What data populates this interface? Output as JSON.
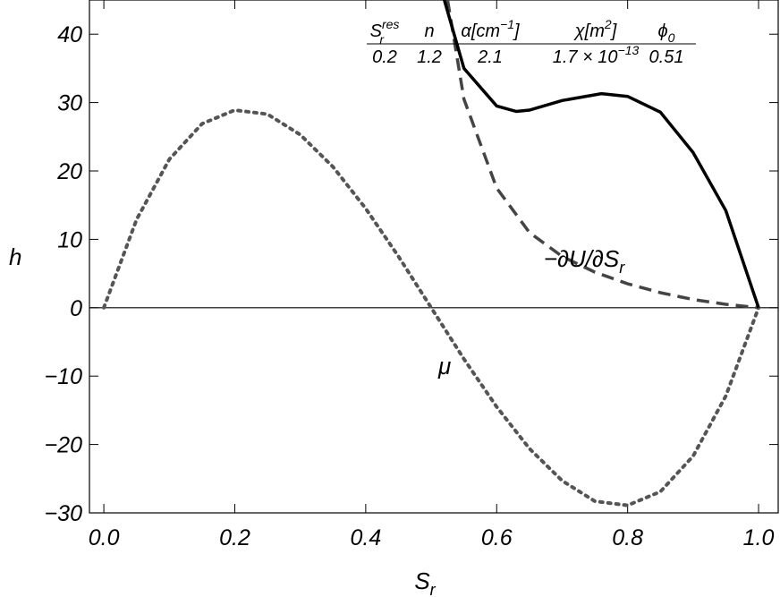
{
  "chart_data": {
    "type": "line",
    "x_label": {
      "text": "S",
      "sub": "r"
    },
    "y_label": "h",
    "xlim": [
      -0.022,
      1.03
    ],
    "ylim": [
      -30,
      45
    ],
    "xticks": [
      {
        "value": 0,
        "label": "0.0"
      },
      0.2,
      0.4,
      0.6,
      0.8,
      {
        "value": 1,
        "label": "1.0"
      }
    ],
    "yticks": [
      {
        "value": -30,
        "label": "−30"
      },
      {
        "value": -20,
        "label": "−20"
      },
      {
        "value": -10,
        "label": "−10"
      },
      0,
      10,
      20,
      30,
      40
    ],
    "series": [
      {
        "name": "μ",
        "color": "#555555",
        "style": "dotted",
        "x": [
          0,
          0.05,
          0.1,
          0.15,
          0.2,
          0.25,
          0.3,
          0.35,
          0.4,
          0.45,
          0.5,
          0.55,
          0.6,
          0.65,
          0.7,
          0.75,
          0.8,
          0.85,
          0.9,
          0.95,
          1.0
        ],
        "values": [
          0,
          12.9,
          21.7,
          26.9,
          28.9,
          28.3,
          25.3,
          20.6,
          14.5,
          7.5,
          0,
          -7.5,
          -14.5,
          -20.6,
          -25.3,
          -28.3,
          -28.9,
          -26.9,
          -21.7,
          -12.9,
          0
        ]
      },
      {
        "name": "−∂U/∂S",
        "name_sub": "r",
        "color": "#444444",
        "style": "dashed",
        "x": [
          0.525,
          0.55,
          0.6,
          0.65,
          0.7,
          0.75,
          0.8,
          0.85,
          0.9,
          0.95,
          1.0
        ],
        "values": [
          45,
          30.5,
          17.5,
          11,
          7.5,
          5.2,
          3.5,
          2.2,
          1.2,
          0.5,
          0
        ]
      },
      {
        "name": null,
        "color": "#000000",
        "style": "solid",
        "x": [
          0.52,
          0.55,
          0.6,
          0.63,
          0.65,
          0.7,
          0.76,
          0.8,
          0.85,
          0.9,
          0.95,
          1.0
        ],
        "values": [
          45,
          35,
          29.5,
          28.7,
          28.9,
          30.3,
          31.3,
          30.9,
          28.6,
          22.7,
          14.2,
          0
        ]
      }
    ],
    "parameters": {
      "headers": [
        {
          "base": "S",
          "sub": "r",
          "sup": "res"
        },
        {
          "base": "n"
        },
        {
          "base": "α[cm",
          "sup": "−1",
          "tail": "]"
        },
        {
          "base": "χ[m",
          "sup": "2",
          "tail": "]"
        },
        {
          "base": "ϕ",
          "sub": "0"
        }
      ],
      "values": [
        {
          "base": "0.2"
        },
        {
          "base": "1.2"
        },
        {
          "base": "2.1"
        },
        {
          "base": "1.7 × 10",
          "sup": "−13"
        },
        {
          "base": "0.51"
        }
      ]
    }
  }
}
